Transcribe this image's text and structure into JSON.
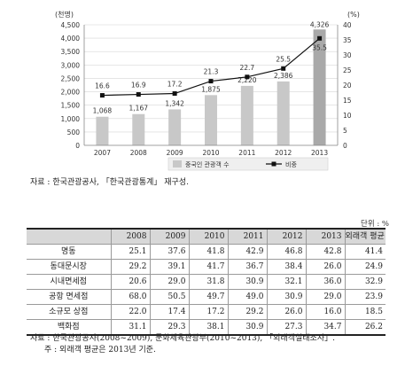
{
  "chart_data": {
    "type": "bar+line",
    "y_unit_label": "(천명)",
    "y2_unit_label": "(%)",
    "categories": [
      "2007",
      "2008",
      "2009",
      "2010",
      "2011",
      "2012",
      "2013"
    ],
    "left_axis_ticks": [
      "0",
      "500",
      "1,000",
      "1,500",
      "2,000",
      "2,500",
      "3,000",
      "3,500",
      "4,000",
      "4,500"
    ],
    "right_axis_ticks": [
      "0",
      "5",
      "10",
      "15",
      "20",
      "25",
      "30",
      "35",
      "40"
    ],
    "ylim": [
      0,
      4500
    ],
    "y2lim": [
      0,
      40
    ],
    "grid": true,
    "legend_position": "bottom-right",
    "series": [
      {
        "name": "중국인 관광객 수",
        "type": "bar",
        "axis": "left",
        "values": [
          1068,
          1167,
          1342,
          1875,
          2220,
          2386,
          4326
        ],
        "labels": [
          "1,068",
          "1,167",
          "1,342",
          "1,875",
          "2,220",
          "2,386",
          "4,326"
        ]
      },
      {
        "name": "비중",
        "type": "line",
        "axis": "right",
        "values": [
          16.6,
          16.9,
          17.2,
          21.3,
          22.7,
          25.5,
          35.5
        ],
        "labels": [
          "16.6",
          "16.9",
          "17.2",
          "21.3",
          "22.7",
          "25.5",
          "35.5"
        ]
      }
    ],
    "colors": {
      "bar": "#c8c8c8",
      "bar_last": "#a9a9a9",
      "line": "#111111",
      "grid": "#d6d6d6"
    }
  },
  "chart_source": "자료 : 한국관광공사, 「한국관광통계」 재구성.",
  "table": {
    "unit": "단위 : %",
    "columns": [
      "2008",
      "2009",
      "2010",
      "2011",
      "2012",
      "2013",
      "외래객 평균"
    ],
    "rows": [
      {
        "label": "명동",
        "values": [
          "25.1",
          "37.6",
          "41.8",
          "42.9",
          "46.8",
          "42.8",
          "41.4"
        ]
      },
      {
        "label": "동대문시장",
        "values": [
          "29.2",
          "39.1",
          "41.7",
          "36.7",
          "38.4",
          "26.0",
          "24.9"
        ]
      },
      {
        "label": "시내면세점",
        "values": [
          "20.6",
          "29.0",
          "31.8",
          "30.9",
          "32.1",
          "36.0",
          "32.9"
        ]
      },
      {
        "label": "공항 면세점",
        "values": [
          "68.0",
          "50.5",
          "49.7",
          "49.0",
          "30.9",
          "29.0",
          "23.9"
        ]
      },
      {
        "label": "소규모 상점",
        "values": [
          "22.0",
          "17.4",
          "17.2",
          "29.2",
          "26.0",
          "16.0",
          "18.5"
        ]
      },
      {
        "label": "백화점",
        "values": [
          "31.1",
          "29.3",
          "38.1",
          "30.9",
          "27.3",
          "34.7",
          "26.2"
        ]
      }
    ]
  },
  "table_source": "자료 : 한국관광공사(2008~2009), 문화체육관광부(2010~2013), 「외래객실태조사」.",
  "table_note": "주 : 외래객 평균은 2013년 기준."
}
